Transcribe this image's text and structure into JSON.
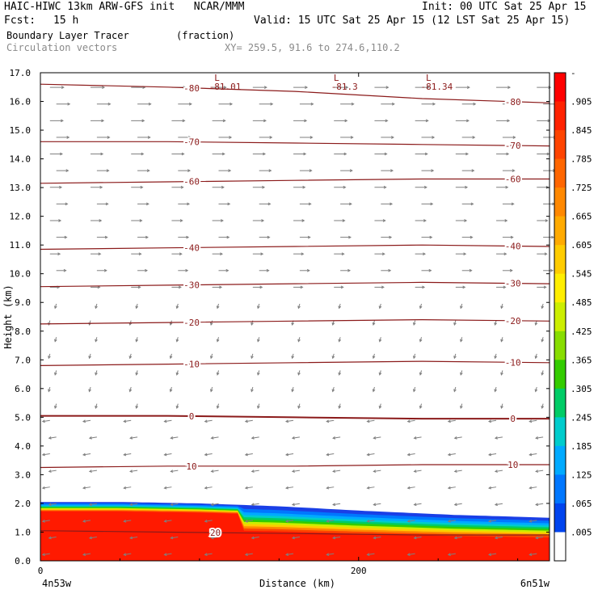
{
  "header": {
    "model_title": "HAIC-HIWC 13km ARW-GFS init   NCAR/MMM",
    "init": "Init: 00 UTC Sat 25 Apr 15",
    "fcst_label": "Fcst:",
    "fcst_value": "15 h",
    "valid": "Valid: 15 UTC Sat 25 Apr 15 (12 LST Sat 25 Apr 15)",
    "field_name": "Boundary Layer Tracer",
    "field_units": "(fraction)",
    "vector_label": "Circulation vectors",
    "xy_text": "XY= 259.5, 91.6 to 274.6,110.2"
  },
  "chart_data": {
    "type": "heatmap",
    "xlabel": "Distance (km)",
    "ylabel": "Height (km)",
    "xlim": [
      0,
      320
    ],
    "ylim": [
      0,
      17
    ],
    "x_ticks": [
      0,
      200
    ],
    "y_ticks": [
      "0.0",
      "1.0",
      "2.0",
      "3.0",
      "4.0",
      "5.0",
      "6.0",
      "7.0",
      "8.0",
      "9.0",
      "10.0",
      "11.0",
      "12.0",
      "13.0",
      "14.0",
      "15.0",
      "16.0",
      "17.0"
    ],
    "x_endpoint_labels": [
      "4n53w",
      "6n51w"
    ],
    "colorbar": {
      "labels": [
        "-",
        ".905",
        ".845",
        ".785",
        ".725",
        ".665",
        ".605",
        ".545",
        ".485",
        ".425",
        ".365",
        ".305",
        ".245",
        ".185",
        ".125",
        ".065",
        ".005"
      ],
      "colors": [
        "#ff0000",
        "#ff2200",
        "#ff4400",
        "#ff6600",
        "#ff8800",
        "#ffaa00",
        "#ffcc00",
        "#ffee00",
        "#ccee00",
        "#88dd00",
        "#33cc00",
        "#00cc66",
        "#00cccc",
        "#00aaff",
        "#0077ff",
        "#0044ee",
        "#ffffff"
      ]
    },
    "isotherm_color": "#8b1a1a",
    "isotherms": [
      {
        "label": "-80",
        "y": [
          16.6,
          16.5,
          16.35,
          16.1,
          15.95
        ]
      },
      {
        "label": "-70",
        "y": [
          14.6,
          14.6,
          14.55,
          14.5,
          14.45
        ]
      },
      {
        "label": "-60",
        "y": [
          13.15,
          13.2,
          13.25,
          13.3,
          13.3
        ]
      },
      {
        "label": "-40",
        "y": [
          10.85,
          10.9,
          10.95,
          11.0,
          10.95
        ]
      },
      {
        "label": "-30",
        "y": [
          9.55,
          9.6,
          9.65,
          9.7,
          9.65
        ]
      },
      {
        "label": "-20",
        "y": [
          8.25,
          8.3,
          8.35,
          8.4,
          8.35
        ]
      },
      {
        "label": "-10",
        "y": [
          6.8,
          6.85,
          6.9,
          6.95,
          6.9
        ]
      },
      {
        "label": "0",
        "y": [
          5.05,
          5.05,
          5.0,
          4.95,
          4.95
        ]
      },
      {
        "label": "10",
        "y": [
          3.25,
          3.3,
          3.3,
          3.35,
          3.35
        ]
      },
      {
        "label": "20",
        "y": [
          1.05,
          1.0,
          0.95,
          0.9,
          0.9
        ]
      }
    ],
    "lows": [
      {
        "label": "L",
        "value": "-81.01",
        "x": 112
      },
      {
        "label": "L",
        "value": "-81.3",
        "x": 187
      },
      {
        "label": "L",
        "value": "-81.34",
        "x": 245
      }
    ],
    "bl_tracer_top_km": [
      2.05,
      2.05,
      2.0,
      1.9,
      1.75,
      1.6,
      1.5
    ],
    "bl_tracer_x_km": [
      0,
      50,
      100,
      150,
      200,
      260,
      320
    ],
    "vector_color": "#7f7f7f"
  }
}
